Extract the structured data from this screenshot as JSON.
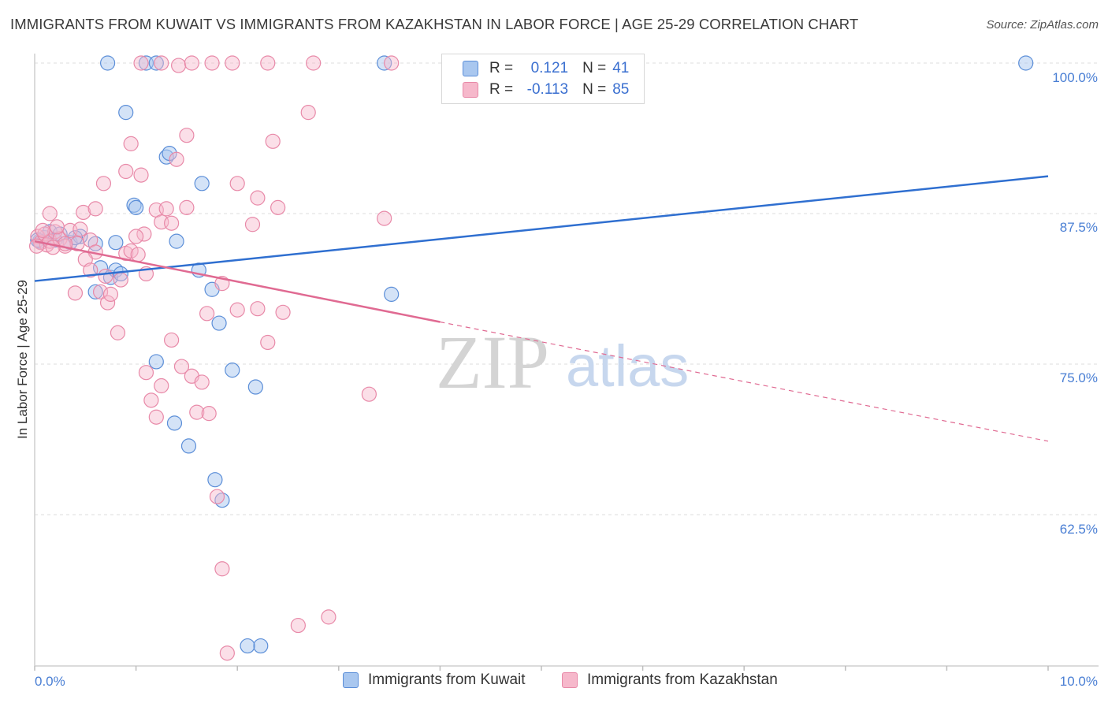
{
  "title": "IMMIGRANTS FROM KUWAIT VS IMMIGRANTS FROM KAZAKHSTAN IN LABOR FORCE | AGE 25-29 CORRELATION CHART",
  "source": "Source: ZipAtlas.com",
  "watermark": {
    "zip": "ZIP",
    "atlas": "atlas"
  },
  "legend": {
    "kuwait": {
      "r_label": "R =",
      "r_value": "0.121",
      "n_label": "N =",
      "n_value": "41"
    },
    "kazakhstan": {
      "r_label": "R =",
      "r_value": "-0.113",
      "n_label": "N =",
      "n_value": "85"
    }
  },
  "colors": {
    "kuwait_fill": "#a9c7ef",
    "kuwait_stroke": "#5b8ed8",
    "kuwait_line": "#2f6fd0",
    "kazakhstan_fill": "#f6b8cb",
    "kazakhstan_stroke": "#e889a8",
    "kazakhstan_line": "#e06a92",
    "tick_text": "#4a7fd4",
    "grid": "#dcdcdc"
  },
  "chart_data": {
    "type": "scatter",
    "title": "IMMIGRANTS FROM KUWAIT VS IMMIGRANTS FROM KAZAKHSTAN IN LABOR FORCE | AGE 25-29 CORRELATION CHART",
    "xlabel": "",
    "ylabel": "In Labor Force | Age 25-29",
    "xlim": [
      0,
      10
    ],
    "ylim": [
      50.5,
      101
    ],
    "x_tick_labels": [
      "0.0%",
      "10.0%"
    ],
    "y_ticks": [
      62.5,
      75.0,
      87.5,
      100.0
    ],
    "y_tick_labels": [
      "62.5%",
      "75.0%",
      "87.5%",
      "100.0%"
    ],
    "series": [
      {
        "name": "Immigrants from Kuwait",
        "points": [
          [
            0.05,
            85.2
          ],
          [
            0.1,
            85.5
          ],
          [
            0.15,
            86.0
          ],
          [
            0.2,
            85.3
          ],
          [
            0.25,
            85.8
          ],
          [
            0.35,
            85.1
          ],
          [
            0.45,
            85.6
          ],
          [
            0.6,
            85.0
          ],
          [
            0.65,
            83.0
          ],
          [
            0.75,
            82.2
          ],
          [
            0.8,
            82.8
          ],
          [
            0.85,
            82.5
          ],
          [
            0.6,
            81.0
          ],
          [
            0.9,
            95.9
          ],
          [
            0.98,
            88.2
          ],
          [
            0.72,
            100.0
          ],
          [
            1.1,
            100.0
          ],
          [
            1.2,
            100.0
          ],
          [
            1.3,
            92.2
          ],
          [
            1.33,
            92.5
          ],
          [
            1.65,
            90.0
          ],
          [
            1.62,
            82.8
          ],
          [
            1.75,
            81.2
          ],
          [
            1.4,
            85.2
          ],
          [
            1.2,
            75.2
          ],
          [
            1.82,
            78.4
          ],
          [
            1.95,
            74.5
          ],
          [
            2.18,
            73.1
          ],
          [
            1.38,
            70.1
          ],
          [
            1.52,
            68.2
          ],
          [
            1.78,
            65.4
          ],
          [
            1.85,
            63.7
          ],
          [
            2.23,
            51.6
          ],
          [
            2.1,
            51.6
          ],
          [
            3.52,
            80.8
          ],
          [
            3.45,
            100.0
          ],
          [
            9.78,
            100.0
          ],
          [
            0.03,
            85.3
          ],
          [
            0.8,
            85.1
          ],
          [
            0.4,
            85.5
          ],
          [
            1.0,
            88.0
          ]
        ],
        "trend": [
          [
            0,
            81.9
          ],
          [
            10,
            90.6
          ]
        ]
      },
      {
        "name": "Immigrants from Kazakhstan",
        "points": [
          [
            0.03,
            85.6
          ],
          [
            0.06,
            85.1
          ],
          [
            0.1,
            85.8
          ],
          [
            0.12,
            84.9
          ],
          [
            0.15,
            85.2
          ],
          [
            0.2,
            86.0
          ],
          [
            0.25,
            85.4
          ],
          [
            0.3,
            84.8
          ],
          [
            0.35,
            86.1
          ],
          [
            0.42,
            85.0
          ],
          [
            0.48,
            87.6
          ],
          [
            0.55,
            85.3
          ],
          [
            0.6,
            84.3
          ],
          [
            0.7,
            82.3
          ],
          [
            0.65,
            81.0
          ],
          [
            0.72,
            80.1
          ],
          [
            0.68,
            90.0
          ],
          [
            0.75,
            80.8
          ],
          [
            0.82,
            77.6
          ],
          [
            0.9,
            84.2
          ],
          [
            0.95,
            84.4
          ],
          [
            1.02,
            84.1
          ],
          [
            1.08,
            85.8
          ],
          [
            1.1,
            82.5
          ],
          [
            0.9,
            91.0
          ],
          [
            0.95,
            93.3
          ],
          [
            1.05,
            90.7
          ],
          [
            1.2,
            87.8
          ],
          [
            1.25,
            86.8
          ],
          [
            1.3,
            87.9
          ],
          [
            1.35,
            86.7
          ],
          [
            1.0,
            85.6
          ],
          [
            1.1,
            74.3
          ],
          [
            1.15,
            72.0
          ],
          [
            1.2,
            70.6
          ],
          [
            1.25,
            73.2
          ],
          [
            1.35,
            77.0
          ],
          [
            1.45,
            74.8
          ],
          [
            1.55,
            74.0
          ],
          [
            1.6,
            71.0
          ],
          [
            1.65,
            73.5
          ],
          [
            1.72,
            70.9
          ],
          [
            1.8,
            64.0
          ],
          [
            1.85,
            58.0
          ],
          [
            1.9,
            51.0
          ],
          [
            2.0,
            79.5
          ],
          [
            2.2,
            79.6
          ],
          [
            1.5,
            94.0
          ],
          [
            1.4,
            92.0
          ],
          [
            1.5,
            88.0
          ],
          [
            2.0,
            90.0
          ],
          [
            2.2,
            88.8
          ],
          [
            2.4,
            88.0
          ],
          [
            2.35,
            93.5
          ],
          [
            2.7,
            95.9
          ],
          [
            1.05,
            100.0
          ],
          [
            1.25,
            100.0
          ],
          [
            1.42,
            99.8
          ],
          [
            1.55,
            100.0
          ],
          [
            1.75,
            100.0
          ],
          [
            1.95,
            100.0
          ],
          [
            2.3,
            100.0
          ],
          [
            2.75,
            100.0
          ],
          [
            3.52,
            100.0
          ],
          [
            3.45,
            87.1
          ],
          [
            2.6,
            53.3
          ],
          [
            2.9,
            54.0
          ],
          [
            3.3,
            72.5
          ],
          [
            1.85,
            81.7
          ],
          [
            2.15,
            86.6
          ],
          [
            2.3,
            76.8
          ],
          [
            2.45,
            79.3
          ],
          [
            1.7,
            79.2
          ],
          [
            0.4,
            80.9
          ],
          [
            0.5,
            83.7
          ],
          [
            0.55,
            82.8
          ],
          [
            0.6,
            87.9
          ],
          [
            0.45,
            86.2
          ],
          [
            0.3,
            85.0
          ],
          [
            0.18,
            84.7
          ],
          [
            0.08,
            86.1
          ],
          [
            0.02,
            84.8
          ],
          [
            0.15,
            87.5
          ],
          [
            0.22,
            86.4
          ],
          [
            0.85,
            82.0
          ]
        ],
        "trend_solid": [
          [
            0,
            85.2
          ],
          [
            4.0,
            78.5
          ]
        ],
        "trend_dashed": [
          [
            4.0,
            78.5
          ],
          [
            10,
            68.6
          ]
        ]
      }
    ]
  },
  "bottom_legend": {
    "kuwait": "Immigrants from Kuwait",
    "kazakhstan": "Immigrants from Kazakhstan"
  }
}
